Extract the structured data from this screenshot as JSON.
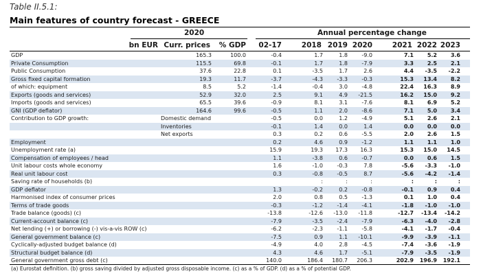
{
  "caption": "Table II.5.1:",
  "title": "Main features of country forecast - GREECE",
  "group_year": "2020",
  "group_growth": "Annual percentage change",
  "headers": [
    "bn EUR",
    "Curr. prices",
    "% GDP",
    "02-17",
    "2018",
    "2019",
    "2020",
    "2021",
    "2022",
    "2023"
  ],
  "rows": [
    {
      "label": "GDP",
      "sub": "",
      "shade": false,
      "v": [
        "165.3",
        "100.0",
        "-0.4",
        "1.7",
        "1.8",
        "-9.0",
        "7.1",
        "5.2",
        "3.6"
      ]
    },
    {
      "label": "Private Consumption",
      "sub": "",
      "shade": true,
      "v": [
        "115.5",
        "69.8",
        "-0.1",
        "1.7",
        "1.8",
        "-7.9",
        "3.3",
        "2.5",
        "2.1"
      ]
    },
    {
      "label": "Public Consumption",
      "sub": "",
      "shade": false,
      "v": [
        "37.6",
        "22.8",
        "0.1",
        "-3.5",
        "1.7",
        "2.6",
        "4.4",
        "-3.5",
        "-2.2"
      ]
    },
    {
      "label": "Gross fixed capital formation",
      "sub": "",
      "shade": true,
      "v": [
        "19.3",
        "11.7",
        "-3.7",
        "-4.3",
        "-3.3",
        "-0.3",
        "15.3",
        "13.4",
        "8.2"
      ]
    },
    {
      "label": "of which: equipment",
      "sub": "",
      "shade": false,
      "v": [
        "8.5",
        "5.2",
        "-1.4",
        "-0.4",
        "3.0",
        "-4.8",
        "22.4",
        "16.3",
        "8.9"
      ]
    },
    {
      "label": "Exports (goods and services)",
      "sub": "",
      "shade": true,
      "v": [
        "52.9",
        "32.0",
        "2.5",
        "9.1",
        "4.9",
        "-21.5",
        "16.2",
        "15.0",
        "9.2"
      ]
    },
    {
      "label": "Imports (goods and services)",
      "sub": "",
      "shade": false,
      "v": [
        "65.5",
        "39.6",
        "-0.9",
        "8.1",
        "3.1",
        "-7.6",
        "8.1",
        "6.9",
        "5.2"
      ]
    },
    {
      "label": "GNI (GDP deflator)",
      "sub": "",
      "shade": true,
      "v": [
        "164.6",
        "99.6",
        "-0.5",
        "1.1",
        "2.0",
        "-8.6",
        "7.1",
        "5.0",
        "3.4"
      ]
    },
    {
      "label": "Contribution to GDP growth:",
      "sub": "Domestic demand",
      "shade": false,
      "v": [
        "",
        "",
        "-0.5",
        "0.0",
        "1.2",
        "-4.9",
        "5.1",
        "2.6",
        "2.1"
      ]
    },
    {
      "label": "",
      "sub": "Inventories",
      "shade": true,
      "v": [
        "",
        "",
        "-0.1",
        "1.4",
        "0.0",
        "1.4",
        "0.0",
        "0.0",
        "0.0"
      ]
    },
    {
      "label": "",
      "sub": "Net exports",
      "shade": false,
      "v": [
        "",
        "",
        "0.3",
        "0.2",
        "0.6",
        "-5.5",
        "2.0",
        "2.6",
        "1.5"
      ]
    },
    {
      "label": "Employment",
      "sub": "",
      "shade": true,
      "v": [
        "",
        "",
        "0.2",
        "4.6",
        "0.9",
        "-1.2",
        "1.1",
        "1.1",
        "1.0"
      ]
    },
    {
      "label": "Unemployment rate (a)",
      "sub": "",
      "shade": false,
      "v": [
        "",
        "",
        "15.9",
        "19.3",
        "17.3",
        "16.3",
        "15.3",
        "15.0",
        "14.5"
      ]
    },
    {
      "label": "Compensation of employees / head",
      "sub": "",
      "shade": true,
      "v": [
        "",
        "",
        "1.1",
        "-3.8",
        "0.6",
        "-0.7",
        "0.0",
        "0.6",
        "1.5"
      ]
    },
    {
      "label": "Unit labour costs whole economy",
      "sub": "",
      "shade": false,
      "v": [
        "",
        "",
        "1.6",
        "-1.0",
        "-0.3",
        "7.8",
        "-5.6",
        "-3.3",
        "-1.0"
      ]
    },
    {
      "label": "Real unit labour cost",
      "sub": "",
      "shade": true,
      "v": [
        "",
        "",
        "0.3",
        "-0.8",
        "-0.5",
        "8.7",
        "-5.6",
        "-4.2",
        "-1.4"
      ]
    },
    {
      "label": "Saving rate of households (b)",
      "sub": "",
      "shade": false,
      "v": [
        "",
        "",
        "",
        ":",
        ":",
        ":",
        ":",
        ":",
        ":"
      ]
    },
    {
      "label": "GDP deflator",
      "sub": "",
      "shade": true,
      "v": [
        "",
        "",
        "1.3",
        "-0.2",
        "0.2",
        "-0.8",
        "-0.1",
        "0.9",
        "0.4"
      ]
    },
    {
      "label": "Harmonised index of consumer prices",
      "sub": "",
      "shade": false,
      "v": [
        "",
        "",
        "2.0",
        "0.8",
        "0.5",
        "-1.3",
        "0.1",
        "1.0",
        "0.4"
      ]
    },
    {
      "label": "Terms of trade goods",
      "sub": "",
      "shade": true,
      "v": [
        "",
        "",
        "-0.3",
        "-1.2",
        "-1.4",
        "-4.1",
        "-1.8",
        "-1.0",
        "-1.0"
      ]
    },
    {
      "label": "Trade balance (goods) (c)",
      "sub": "",
      "shade": false,
      "v": [
        "",
        "",
        "-13.8",
        "-12.6",
        "-13.0",
        "-11.8",
        "-12.7",
        "-13.4",
        "-14.2"
      ]
    },
    {
      "label": "Current-account balance (c)",
      "sub": "",
      "shade": true,
      "v": [
        "",
        "",
        "-7.9",
        "-3.5",
        "-2.4",
        "-7.9",
        "-6.3",
        "-4.0",
        "-2.8"
      ]
    },
    {
      "label": "Net lending (+) or borrowing (-) vis-a-vis ROW (c)",
      "sub": "",
      "shade": false,
      "v": [
        "",
        "",
        "-6.2",
        "-2.3",
        "-1.1",
        "-5.8",
        "-4.1",
        "-1.7",
        "-0.4"
      ]
    },
    {
      "label": "General government balance (c)",
      "sub": "",
      "shade": true,
      "v": [
        "",
        "",
        "-7.5",
        "0.9",
        "1.1",
        "-10.1",
        "-9.9",
        "-3.9",
        "-1.1"
      ]
    },
    {
      "label": "Cyclically-adjusted budget balance (d)",
      "sub": "",
      "shade": false,
      "v": [
        "",
        "",
        "-4.9",
        "4.0",
        "2.8",
        "-4.5",
        "-7.4",
        "-3.6",
        "-1.9"
      ]
    },
    {
      "label": "Structural budget balance (d)",
      "sub": "",
      "shade": true,
      "v": [
        "",
        "",
        "4.3",
        "4.6",
        "1.7",
        "-5.1",
        "-7.9",
        "-3.5",
        "-1.9"
      ]
    },
    {
      "label": "General government gross debt (c)",
      "sub": "",
      "shade": false,
      "v": [
        "",
        "",
        "140.0",
        "186.4",
        "180.7",
        "206.3",
        "202.9",
        "196.9",
        "192.1"
      ]
    }
  ],
  "footnote": "(a) Eurostat definition. (b) gross saving divided by adjusted gross disposable income. (c) as a % of GDP. (d) as a % of potential GDP."
}
